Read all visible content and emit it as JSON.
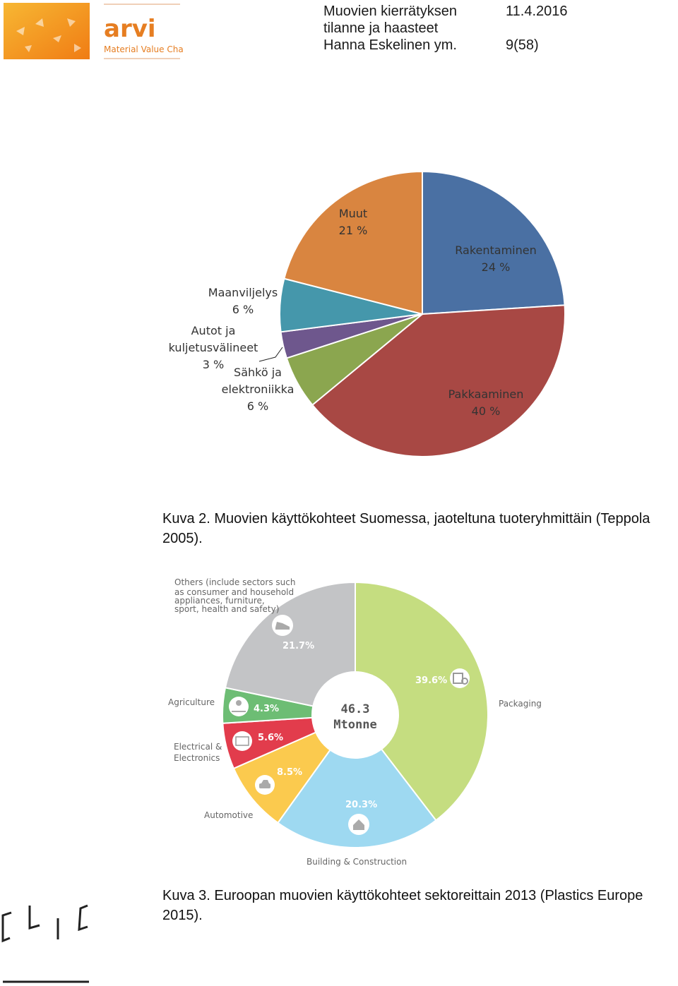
{
  "header": {
    "title_line1": "Muovien kierrätyksen",
    "title_line2": "tilanne ja haasteet",
    "authors": "Hanna Eskelinen ym.",
    "date": "11.4.2016",
    "page": "9(58)"
  },
  "logo": {
    "brand": "arvi",
    "tagline": "Material Value Chains",
    "bottom_logo_text": "CLIC",
    "colors": {
      "orange": "#f39c12",
      "brand_text": "#e67e22"
    }
  },
  "chart_data": [
    {
      "type": "pie",
      "title": "",
      "slices": [
        {
          "label": "Rakentaminen",
          "value": 24,
          "value_label": "24 %",
          "color": "#4a70a3"
        },
        {
          "label": "Pakkaaminen",
          "value": 40,
          "value_label": "40 %",
          "color": "#a84844"
        },
        {
          "label": "Sähkö ja elektroniikka",
          "label_lines": [
            "Sähkö ja",
            "elektroniikka"
          ],
          "value": 6,
          "value_label": "6 %",
          "color": "#8ba64f"
        },
        {
          "label": "Autot ja kuljetusvälineet",
          "label_lines": [
            "Autot ja",
            "kuljetusvälineet"
          ],
          "value": 3,
          "value_label": "3 %",
          "color": "#6e578d"
        },
        {
          "label": "Maanviljelys",
          "value": 6,
          "value_label": "6 %",
          "color": "#4597ab"
        },
        {
          "label": "Muut",
          "value": 21,
          "value_label": "21 %",
          "color": "#d98540"
        }
      ]
    },
    {
      "type": "pie",
      "center_text": [
        "46.3",
        "Mtonne"
      ],
      "slices": [
        {
          "label": "Packaging",
          "value": 39.6,
          "value_label": "39.6%",
          "color": "#c5dd80"
        },
        {
          "label": "Building & Construction",
          "value": 20.3,
          "value_label": "20.3%",
          "color": "#9ed9f1"
        },
        {
          "label": "Automotive",
          "value": 8.5,
          "value_label": "8.5%",
          "color": "#fbca4e"
        },
        {
          "label": "Electrical & Electronics",
          "label_lines": [
            "Electrical &",
            "Electronics"
          ],
          "value": 5.6,
          "value_label": "5.6%",
          "color": "#e23c4c"
        },
        {
          "label": "Agriculture",
          "value": 4.3,
          "value_label": "4.3%",
          "color": "#6dbd74"
        },
        {
          "label": "Others",
          "label_lines": [
            "Others (include sectors such",
            "as consumer and household",
            "appliances, furniture,",
            "sport, health and safety)"
          ],
          "value": 21.7,
          "value_label": "21.7%",
          "color": "#c3c4c6"
        }
      ]
    }
  ],
  "captions": {
    "kuva2_line1": "Kuva 2. Muovien käyttökohteet Suomessa, jaoteltuna tuoteryhmittäin (Teppola",
    "kuva2_line2": "2005).",
    "kuva3_line1": "Kuva 3. Euroopan muovien käyttökohteet sektoreittain 2013 (Plastics Europe",
    "kuva3_line2": "2015)."
  }
}
